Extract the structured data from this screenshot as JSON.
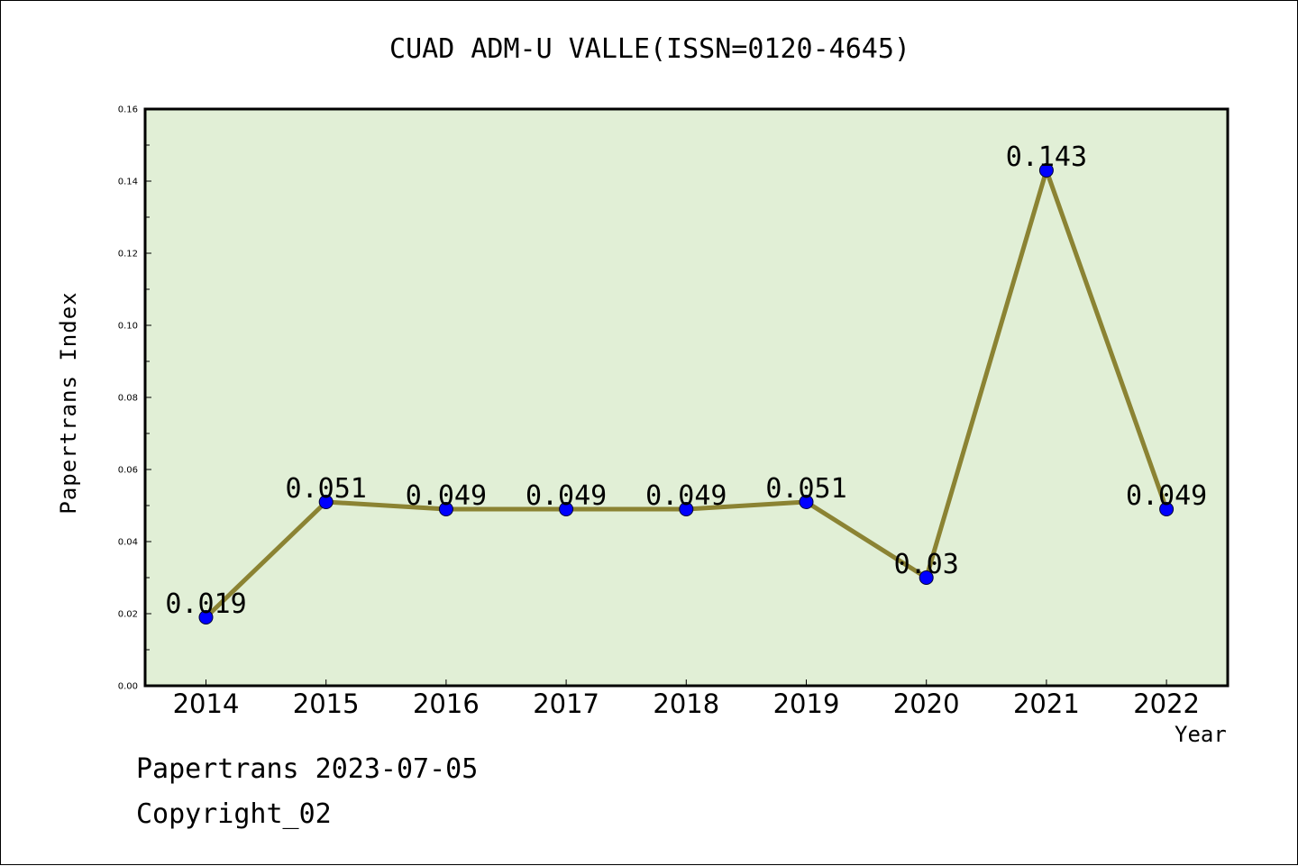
{
  "page": {
    "footer_date": "Papertrans 2023-07-05",
    "footer_copyright": "Copyright_02"
  },
  "colors": {
    "plot_background": "#e1efd6",
    "line": "#8b8333",
    "marker": "#0000ff",
    "axis": "#000000"
  },
  "chart_data": {
    "type": "line",
    "title": "CUAD ADM-U VALLE(ISSN=0120-4645)",
    "xlabel": "Year",
    "ylabel": "Papertrans Index",
    "categories": [
      "2014",
      "2015",
      "2016",
      "2017",
      "2018",
      "2019",
      "2020",
      "2021",
      "2022"
    ],
    "series": [
      {
        "values": [
          0.019,
          0.051,
          0.049,
          0.049,
          0.049,
          0.051,
          0.03,
          0.143,
          0.049
        ],
        "data_labels": [
          "0.019",
          "0.051",
          "0.049",
          "0.049",
          "0.049",
          "0.051",
          "0.03",
          "0.143",
          "0.049"
        ]
      }
    ],
    "ylim": [
      0,
      0.16
    ],
    "yticks": [
      0.0,
      0.02,
      0.04,
      0.06,
      0.08,
      0.1,
      0.12,
      0.14,
      0.16
    ],
    "ytick_labels": [
      "0.00",
      "0.02",
      "0.04",
      "0.06",
      "0.08",
      "0.10",
      "0.12",
      "0.14",
      "0.16"
    ],
    "grid": false,
    "legend": "none"
  }
}
